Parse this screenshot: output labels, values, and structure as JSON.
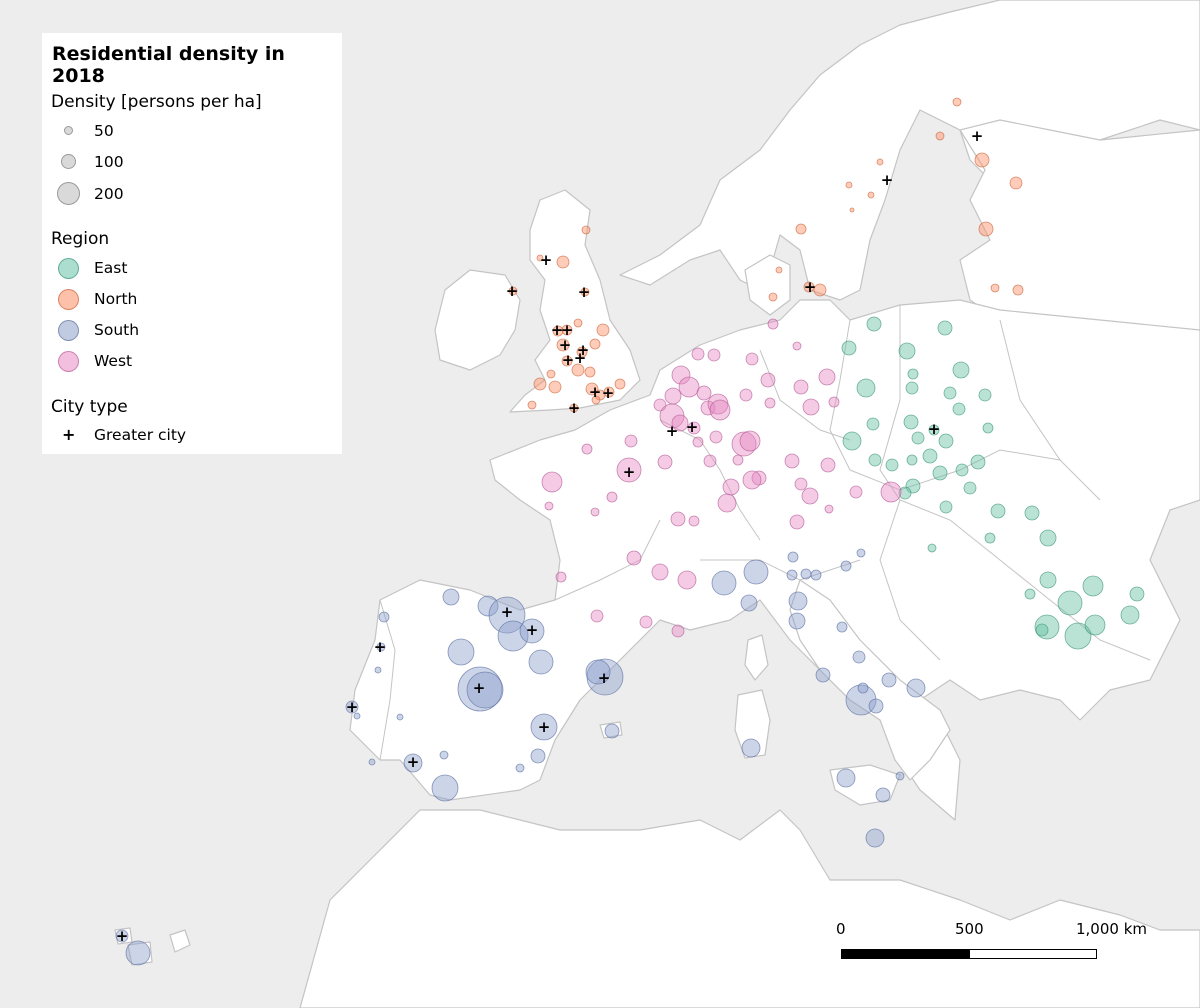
{
  "legend": {
    "title": "Residential density in 2018",
    "density_heading": "Density [persons per ha]",
    "density_items": [
      {
        "label": "50"
      },
      {
        "label": "100"
      },
      {
        "label": "200"
      }
    ],
    "region_heading": "Region",
    "region_items": [
      {
        "label": "East",
        "color": "#66c2a5"
      },
      {
        "label": "North",
        "color": "#fc8d62"
      },
      {
        "label": "South",
        "color": "#8da0cb"
      },
      {
        "label": "West",
        "color": "#e78ac3"
      }
    ],
    "citytype_heading": "City type",
    "citytype_items": [
      {
        "label": "Greater city",
        "symbol": "+"
      }
    ]
  },
  "scalebar": {
    "labels": [
      "0",
      "500",
      "1,000 km"
    ]
  },
  "colors": {
    "sea": "#ededed",
    "land": "#ffffff",
    "border": "#c4c4c4"
  }
}
